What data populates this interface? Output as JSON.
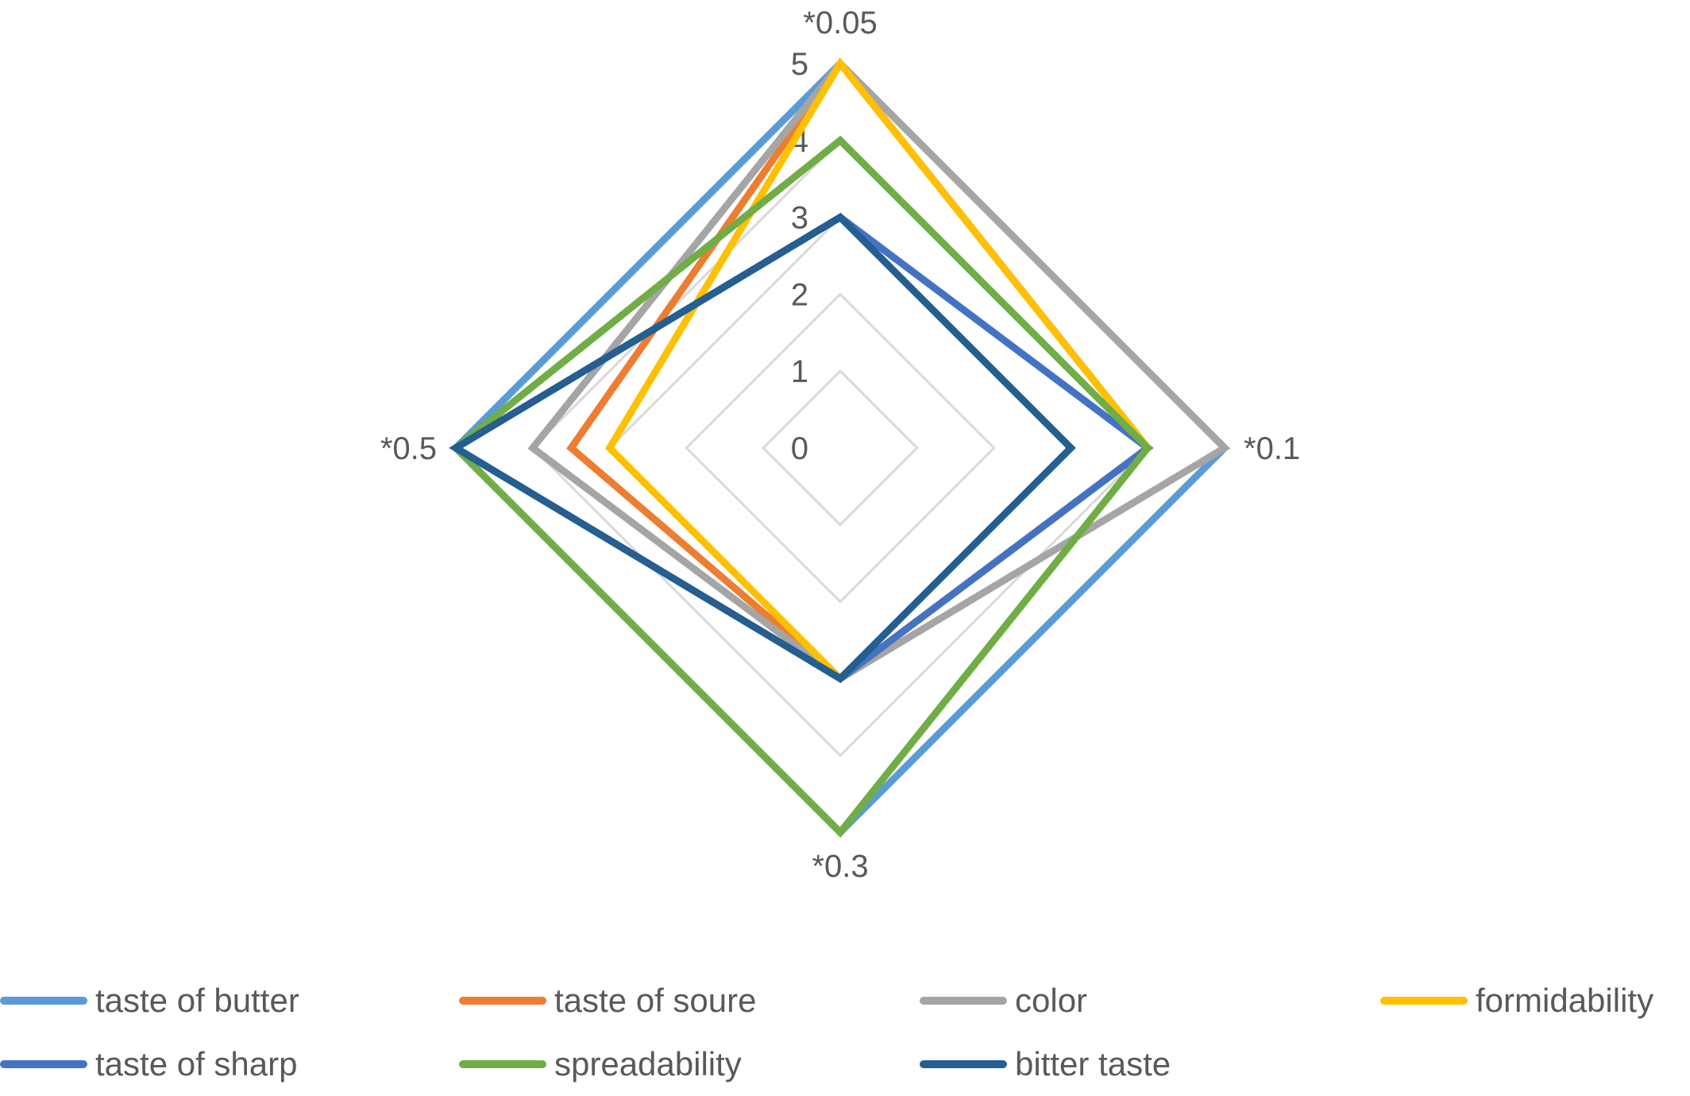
{
  "chart_data": {
    "type": "radar",
    "title": "",
    "categories": [
      "*0.05",
      "*0.1",
      "*0.3",
      "*0.5"
    ],
    "radial_ticks": [
      "0",
      "1",
      "2",
      "3",
      "4",
      "5"
    ],
    "rlim": [
      0,
      5
    ],
    "grid": true,
    "legend_position": "bottom",
    "series": [
      {
        "name": "taste of butter",
        "color": "#5B9BD5",
        "values": [
          5,
          5,
          5,
          5
        ]
      },
      {
        "name": "taste of soure",
        "color": "#ED7D31",
        "values": [
          5,
          4,
          3,
          3.5
        ]
      },
      {
        "name": "color",
        "color": "#A5A5A5",
        "values": [
          5,
          5,
          3,
          4
        ]
      },
      {
        "name": "formidability",
        "color": "#FFC000",
        "values": [
          5,
          4,
          3,
          3
        ]
      },
      {
        "name": "taste of sharp",
        "color": "#4472C4",
        "values": [
          3,
          4,
          3,
          5
        ]
      },
      {
        "name": "spreadability",
        "color": "#70AD47",
        "values": [
          4,
          4,
          5,
          5
        ]
      },
      {
        "name": "bitter taste",
        "color": "#255E91",
        "values": [
          3,
          3,
          3,
          5
        ]
      }
    ]
  }
}
